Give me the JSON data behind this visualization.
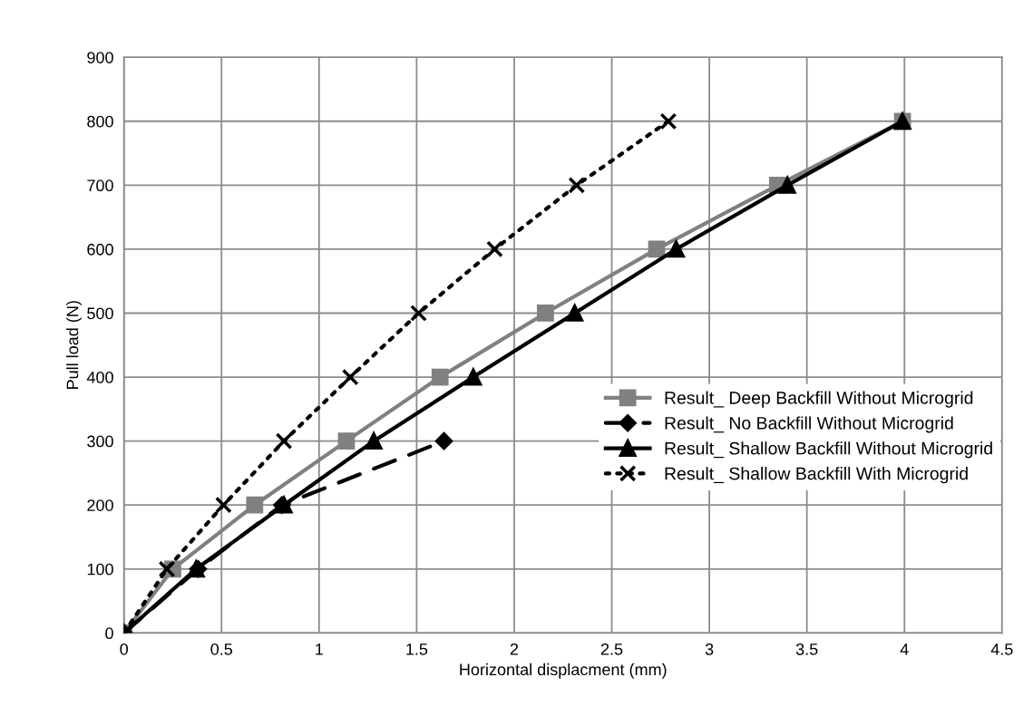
{
  "chart_data": {
    "type": "line",
    "xlabel": "Horizontal displacment (mm)",
    "ylabel": "Pull load (N)",
    "xlim": [
      0,
      4.5
    ],
    "xticks": [
      0,
      0.5,
      1,
      1.5,
      2,
      2.5,
      3,
      3.5,
      4,
      4.5
    ],
    "ylim": [
      0,
      900
    ],
    "yticks": [
      0,
      100,
      200,
      300,
      400,
      500,
      600,
      700,
      800,
      900
    ],
    "grid": true,
    "legend": "right",
    "series": [
      {
        "name": "Result_ Deep Backfill Without Microgrid",
        "color": "#808080",
        "marker": "square",
        "line_style": "solid",
        "x": [
          0,
          0.25,
          0.67,
          1.14,
          1.62,
          2.16,
          2.73,
          3.35,
          3.99
        ],
        "values": [
          0,
          100,
          200,
          300,
          400,
          500,
          600,
          700,
          800
        ]
      },
      {
        "name": "Result_ No Backfill Without Microgrid",
        "color": "#000000",
        "marker": "diamond",
        "line_style": "dashed",
        "x": [
          0,
          0.38,
          0.81,
          1.64
        ],
        "values": [
          0,
          100,
          200,
          300
        ]
      },
      {
        "name": "Result_ Shallow Backfill Without Microgrid",
        "color": "#000000",
        "marker": "triangle",
        "line_style": "solid",
        "x": [
          0,
          0.37,
          0.82,
          1.28,
          1.79,
          2.31,
          2.83,
          3.4,
          3.99
        ],
        "values": [
          0,
          100,
          200,
          300,
          400,
          500,
          600,
          700,
          800
        ]
      },
      {
        "name": "Result_ Shallow Backfill With Microgrid",
        "color": "#000000",
        "marker": "cross",
        "line_style": "dotted",
        "x": [
          0,
          0.22,
          0.51,
          0.82,
          1.16,
          1.51,
          1.9,
          2.32,
          2.79
        ],
        "values": [
          0,
          100,
          200,
          300,
          400,
          500,
          600,
          700,
          800
        ]
      }
    ]
  }
}
